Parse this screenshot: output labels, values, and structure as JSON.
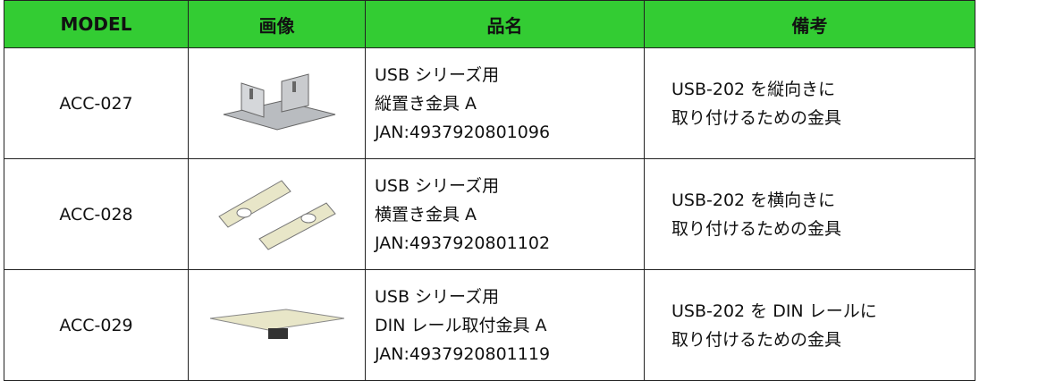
{
  "table": {
    "headers": [
      "MODEL",
      "画像",
      "品名",
      "備考"
    ],
    "rows": [
      {
        "model": "ACC-027",
        "name": [
          "USB シリーズ用",
          "縦置き金具 A",
          "JAN:4937920801096"
        ],
        "note": [
          "USB-202 を縦向きに",
          "取り付けるための金具"
        ]
      },
      {
        "model": "ACC-028",
        "name": [
          "USB シリーズ用",
          "横置き金具 A",
          "JAN:4937920801102"
        ],
        "note": [
          "USB-202 を横向きに",
          "取り付けるための金具"
        ]
      },
      {
        "model": "ACC-029",
        "name": [
          "USB シリーズ用",
          "DIN レール取付金具 A",
          "JAN:4937920801119"
        ],
        "note": [
          "USB-202 を DIN レールに",
          "取り付けるための金具"
        ]
      }
    ]
  }
}
